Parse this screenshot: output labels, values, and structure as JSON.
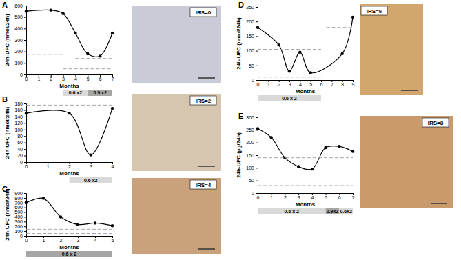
{
  "chart_data": [
    {
      "type": "line",
      "title": "A",
      "y_label": "24h-UFC (nmol/24h)",
      "x_label": "Months",
      "xlim": [
        0,
        7
      ],
      "xticks": [
        0,
        1,
        2,
        3,
        4,
        5,
        6,
        7
      ],
      "ylim": [
        0,
        600
      ],
      "yticks": [
        0,
        100,
        200,
        300,
        400,
        500,
        600
      ],
      "series": [
        {
          "color": "#000000",
          "marker": "circle",
          "line_style": "solid",
          "x": [
            0,
            2,
            3,
            4,
            5,
            6,
            7
          ],
          "values": [
            550,
            560,
            530,
            360,
            180,
            160,
            360
          ]
        },
        {
          "color": "#a6a6a6",
          "marker": "none",
          "line_style": "dashed",
          "x": [
            0,
            3
          ],
          "values": [
            175,
            175
          ]
        },
        {
          "color": "#a6a6a6",
          "marker": "none",
          "line_style": "dashed",
          "x": [
            4,
            7
          ],
          "values": [
            140,
            140
          ]
        },
        {
          "color": "#a6a6a6",
          "marker": "none",
          "line_style": "dashed",
          "x": [
            3,
            7
          ],
          "values": [
            50,
            50
          ]
        }
      ],
      "treatment": [
        {
          "label": "0.6 x2",
          "start": 3,
          "end": 5,
          "color": "#d9d9d9"
        },
        {
          "label": "0.9 x2",
          "start": 5,
          "end": 7,
          "color": "#a6a6a6"
        }
      ],
      "annotations": [
        "IRS=0"
      ]
    },
    {
      "type": "line",
      "title": "B",
      "y_label": "24h-UFC (nmol/24h)",
      "x_label": "Months",
      "xlim": [
        0,
        4
      ],
      "xticks": [
        0,
        1,
        2,
        3,
        4
      ],
      "ylim": [
        0,
        180
      ],
      "yticks": [
        0,
        20,
        40,
        60,
        80,
        100,
        120,
        140,
        160,
        180
      ],
      "series": [
        {
          "color": "#000000",
          "marker": "circle",
          "line_style": "solid",
          "x": [
            0,
            2,
            3,
            4
          ],
          "values": [
            150,
            150,
            22,
            165
          ]
        },
        {
          "color": "#a6a6a6",
          "marker": "none",
          "line_style": "dashed",
          "x": [
            0,
            4
          ],
          "values": [
            175,
            175
          ]
        }
      ],
      "treatment": [
        {
          "label": "0.6 x2",
          "start": 2,
          "end": 4,
          "color": "#d9d9d9"
        }
      ],
      "annotations": [
        "IRS=2"
      ]
    },
    {
      "type": "line",
      "title": "C",
      "y_label": "24h-UFC (nmol/24h)",
      "x_label": "Months",
      "xlim": [
        0,
        5
      ],
      "xticks": [
        0,
        1,
        2,
        3,
        4,
        5
      ],
      "ylim": [
        0,
        900
      ],
      "yticks": [
        0,
        100,
        200,
        300,
        400,
        500,
        600,
        700,
        800,
        900
      ],
      "series": [
        {
          "color": "#000000",
          "marker": "circle",
          "line_style": "solid",
          "x": [
            0,
            1,
            2,
            3,
            4,
            5
          ],
          "values": [
            700,
            790,
            400,
            240,
            270,
            215
          ]
        },
        {
          "color": "#a6a6a6",
          "marker": "none",
          "line_style": "dashed",
          "x": [
            0,
            5
          ],
          "values": [
            140,
            140
          ]
        },
        {
          "color": "#a6a6a6",
          "marker": "none",
          "line_style": "dashed",
          "x": [
            0,
            5
          ],
          "values": [
            50,
            50
          ]
        }
      ],
      "treatment": [
        {
          "label": "0.6 x 2",
          "start": 0,
          "end": 5,
          "color": "#a6a6a6"
        }
      ],
      "annotations": [
        "IRS=4"
      ]
    },
    {
      "type": "line",
      "title": "D",
      "y_label": "24h-UFC (nmol/24h)",
      "x_label": "Months",
      "xlim": [
        0,
        9
      ],
      "xticks": [
        0,
        1,
        2,
        3,
        4,
        5,
        6,
        7,
        8,
        9
      ],
      "ylim": [
        0,
        250
      ],
      "yticks": [
        0,
        50,
        100,
        150,
        200,
        250
      ],
      "series": [
        {
          "color": "#000000",
          "marker": "circle",
          "line_style": "solid",
          "x": [
            0,
            2,
            3,
            4,
            5,
            8,
            9
          ],
          "values": [
            180,
            120,
            30,
            95,
            25,
            90,
            215
          ]
        },
        {
          "color": "#a6a6a6",
          "marker": "none",
          "line_style": "dashed",
          "x": [
            0,
            6
          ],
          "values": [
            105,
            105
          ]
        },
        {
          "color": "#a6a6a6",
          "marker": "none",
          "line_style": "dashed",
          "x": [
            0,
            6
          ],
          "values": [
            10,
            10
          ]
        },
        {
          "color": "#a6a6a6",
          "marker": "none",
          "line_style": "dashed",
          "x": [
            6.5,
            9
          ],
          "values": [
            180,
            180
          ]
        }
      ],
      "treatment": [
        {
          "label": "0.6 x 2",
          "start": 0,
          "end": 6,
          "color": "#d9d9d9"
        }
      ],
      "annotations": [
        "IRS=6"
      ]
    },
    {
      "type": "line",
      "title": "E",
      "y_label": "24h-UFC (µg/24h)",
      "x_label": "Months",
      "xlim": [
        0,
        7
      ],
      "xticks": [
        0,
        1,
        2,
        3,
        4,
        5,
        6,
        7
      ],
      "ylim": [
        0,
        300
      ],
      "yticks": [
        0,
        50,
        100,
        150,
        200,
        250,
        300
      ],
      "series": [
        {
          "color": "#000000",
          "marker": "circle",
          "line_style": "solid",
          "x": [
            0,
            1,
            2,
            3,
            4,
            5,
            6,
            7
          ],
          "values": [
            255,
            220,
            140,
            105,
            95,
            180,
            185,
            165
          ]
        },
        {
          "color": "#a6a6a6",
          "marker": "none",
          "line_style": "dashed",
          "x": [
            0,
            7
          ],
          "values": [
            140,
            140
          ]
        },
        {
          "color": "#a6a6a6",
          "marker": "none",
          "line_style": "dashed",
          "x": [
            0,
            7
          ],
          "values": [
            30,
            30
          ]
        }
      ],
      "treatment": [
        {
          "label": "0.6 x 2",
          "start": 0,
          "end": 5,
          "color": "#d9d9d9"
        },
        {
          "label": "0.9x2",
          "start": 5,
          "end": 6,
          "color": "#a6a6a6"
        },
        {
          "label": "0.6x2",
          "start": 6,
          "end": 7,
          "color": "#d9d9d9"
        }
      ],
      "annotations": [
        "IRS=8"
      ]
    }
  ]
}
